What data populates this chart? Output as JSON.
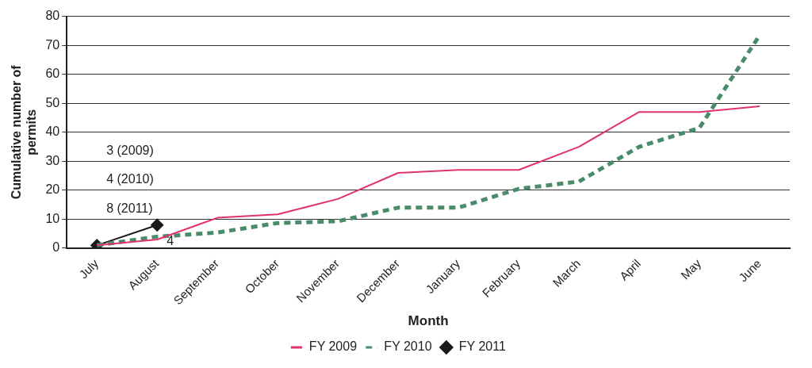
{
  "chart_data": {
    "type": "line",
    "xlabel": "Month",
    "ylabel": "Cumulative number of permits",
    "categories": [
      "July",
      "August",
      "September",
      "October",
      "November",
      "December",
      "January",
      "February",
      "March",
      "April",
      "May",
      "June"
    ],
    "series": [
      {
        "name": "FY 2009",
        "color": "#e0336a",
        "line_style": "solid",
        "marker": "none",
        "values": [
          1,
          3,
          10.5,
          11.7,
          17,
          26,
          27,
          27,
          35,
          47,
          47,
          49
        ]
      },
      {
        "name": "FY 2010",
        "color": "#4a8c6a",
        "line_style": "dashed",
        "marker": "none",
        "values": [
          1,
          4,
          5.4,
          8.7,
          9.3,
          14,
          14,
          20.5,
          23,
          35,
          41.5,
          73.5
        ]
      },
      {
        "name": "FY 2011",
        "color": "#1a1a1a",
        "line_style": "solid",
        "marker": "diamond",
        "values": [
          1,
          8,
          null,
          null,
          null,
          null,
          null,
          null,
          null,
          null,
          null,
          null
        ]
      }
    ],
    "ylim": [
      0,
      80
    ],
    "yticks": [
      0,
      10,
      20,
      30,
      40,
      50,
      60,
      70,
      80
    ],
    "grid": "y",
    "legend": "bottom",
    "annotations": [
      "3 (2009)",
      "4 (2010)",
      "8 (2011)",
      {
        "text": "4",
        "x": "August",
        "y": 4
      }
    ]
  }
}
